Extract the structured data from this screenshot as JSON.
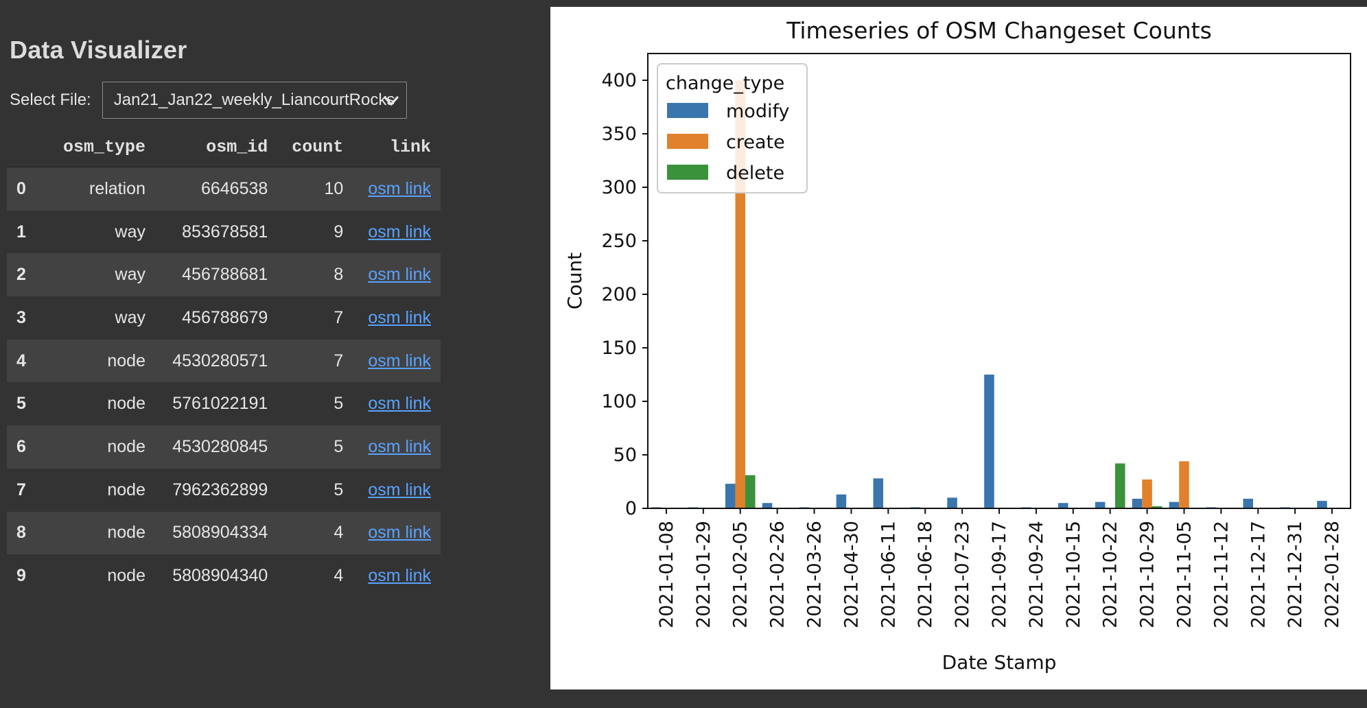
{
  "app": {
    "title": "Data Visualizer"
  },
  "file_select": {
    "label": "Select File:",
    "value": "Jan21_Jan22_weekly_LiancourtRocks"
  },
  "table": {
    "columns": [
      "osm_type",
      "osm_id",
      "count",
      "link"
    ],
    "rows": [
      {
        "index": "0",
        "osm_type": "relation",
        "osm_id": "6646538",
        "count": "10",
        "link": "osm link"
      },
      {
        "index": "1",
        "osm_type": "way",
        "osm_id": "853678581",
        "count": "9",
        "link": "osm link"
      },
      {
        "index": "2",
        "osm_type": "way",
        "osm_id": "456788681",
        "count": "8",
        "link": "osm link"
      },
      {
        "index": "3",
        "osm_type": "way",
        "osm_id": "456788679",
        "count": "7",
        "link": "osm link"
      },
      {
        "index": "4",
        "osm_type": "node",
        "osm_id": "4530280571",
        "count": "7",
        "link": "osm link"
      },
      {
        "index": "5",
        "osm_type": "node",
        "osm_id": "5761022191",
        "count": "5",
        "link": "osm link"
      },
      {
        "index": "6",
        "osm_type": "node",
        "osm_id": "4530280845",
        "count": "5",
        "link": "osm link"
      },
      {
        "index": "7",
        "osm_type": "node",
        "osm_id": "7962362899",
        "count": "5",
        "link": "osm link"
      },
      {
        "index": "8",
        "osm_type": "node",
        "osm_id": "5808904334",
        "count": "4",
        "link": "osm link"
      },
      {
        "index": "9",
        "osm_type": "node",
        "osm_id": "5808904340",
        "count": "4",
        "link": "osm link"
      }
    ]
  },
  "chart_data": {
    "type": "bar",
    "title": "Timeseries of OSM Changeset Counts",
    "xlabel": "Date Stamp",
    "ylabel": "Count",
    "ylim": [
      0,
      425
    ],
    "yticks": [
      0,
      50,
      100,
      150,
      200,
      250,
      300,
      350,
      400
    ],
    "legend_title": "change_type",
    "legend_position": "top-left",
    "categories": [
      "2021-01-08",
      "2021-01-29",
      "2021-02-05",
      "2021-02-26",
      "2021-03-26",
      "2021-04-30",
      "2021-06-11",
      "2021-06-18",
      "2021-07-23",
      "2021-09-17",
      "2021-09-24",
      "2021-10-15",
      "2021-10-22",
      "2021-10-29",
      "2021-11-05",
      "2021-11-12",
      "2021-12-17",
      "2021-12-31",
      "2022-01-28"
    ],
    "series": [
      {
        "name": "modify",
        "color": "#3a75ae",
        "values": [
          1,
          1,
          23,
          5,
          1,
          13,
          28,
          1,
          10,
          125,
          1,
          5,
          6,
          9,
          6,
          1,
          9,
          1,
          7
        ]
      },
      {
        "name": "create",
        "color": "#e1812c",
        "values": [
          0,
          0,
          400,
          0,
          0,
          0,
          0,
          0,
          0,
          0,
          0,
          0,
          0,
          27,
          44,
          0,
          0,
          0,
          0
        ]
      },
      {
        "name": "delete",
        "color": "#3a923a",
        "values": [
          0,
          0,
          31,
          0,
          0,
          0,
          0,
          0,
          0,
          0,
          0,
          0,
          42,
          2,
          0,
          0,
          0,
          0,
          0
        ]
      }
    ],
    "grid": false
  }
}
